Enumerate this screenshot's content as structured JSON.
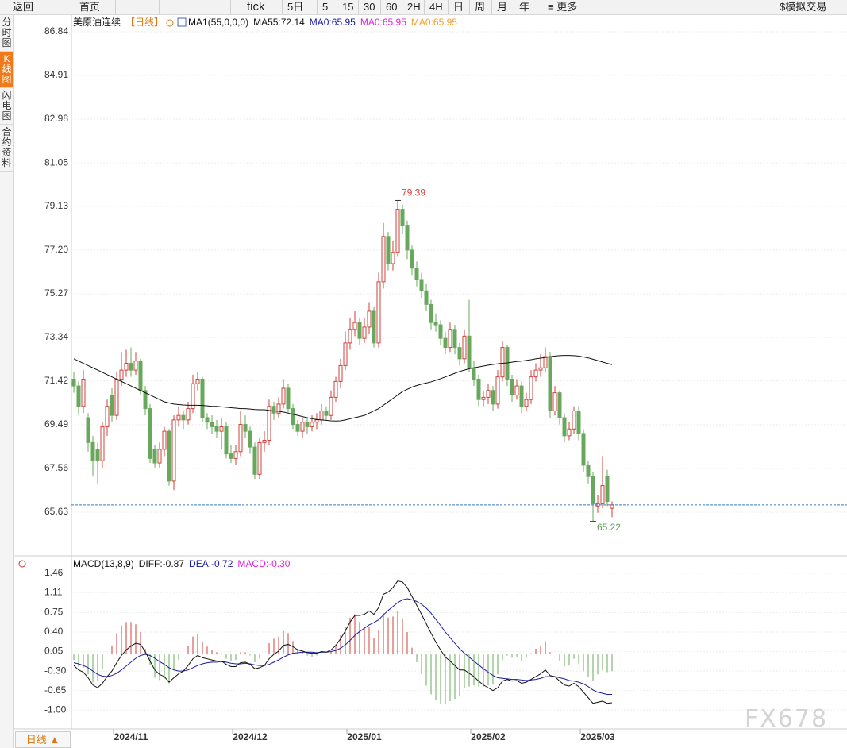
{
  "toolbar": {
    "back": "返回",
    "home": "首页",
    "tick": "tick",
    "periods": [
      "5日",
      "5",
      "15",
      "30",
      "60",
      "2H",
      "4H",
      "日",
      "周",
      "月",
      "年"
    ],
    "more": "更多",
    "trade": "模拟交易"
  },
  "sidebar": [
    "分时图",
    "K线图",
    "闪电图",
    "合约资料"
  ],
  "period_button": "日线 ▲",
  "watermark": "FX678",
  "chart_data": {
    "type": "candlestick",
    "title": "美原油连续",
    "period": "【日线】",
    "ma_params": "MA1(55,0,0,0)",
    "legend": [
      {
        "text": "MA55:72.14",
        "color": "#111111"
      },
      {
        "text": "MA0:65.95",
        "color": "#1a1aa6"
      },
      {
        "text": "MA0:65.95",
        "color": "#e020e0"
      },
      {
        "text": "MA0:65.95",
        "color": "#f0a030"
      }
    ],
    "up_color": "#d0403a",
    "down_color": "#68a85c",
    "ylim": [
      63.7,
      87.47
    ],
    "yticks": [
      86.84,
      84.91,
      82.98,
      81.05,
      79.13,
      {
        "value": 77.2,
        "label": "77.20"
      },
      75.27,
      73.34,
      71.42,
      69.49,
      67.56,
      65.63
    ],
    "grid": true,
    "xticks": [
      {
        "value": 12,
        "label": "2024/11"
      },
      {
        "value": 37,
        "label": "2024/12"
      },
      {
        "value": 61,
        "label": "2025/01"
      },
      {
        "value": 87,
        "label": "2025/02"
      },
      {
        "value": 110,
        "label": "2025/03"
      }
    ],
    "high_index": 68,
    "low_index": 109,
    "ohlc": [
      [
        71.5,
        71.8,
        70.9,
        71.2
      ],
      [
        71.2,
        71.4,
        69.9,
        70.3
      ],
      [
        70.3,
        71.9,
        70.0,
        71.5
      ],
      [
        69.8,
        70.0,
        68.3,
        68.7
      ],
      [
        68.7,
        69.0,
        67.2,
        67.9
      ],
      [
        68.4,
        68.7,
        66.9,
        67.9
      ],
      [
        67.9,
        69.6,
        67.6,
        69.4
      ],
      [
        69.4,
        70.6,
        69.0,
        70.3
      ],
      [
        70.8,
        71.1,
        69.6,
        69.9
      ],
      [
        69.9,
        71.8,
        69.7,
        71.5
      ],
      [
        71.5,
        72.7,
        71.2,
        71.9
      ],
      [
        71.9,
        72.8,
        71.6,
        72.2
      ],
      [
        72.2,
        72.9,
        71.6,
        71.9
      ],
      [
        71.9,
        72.7,
        71.7,
        72.3
      ],
      [
        72.3,
        72.4,
        70.8,
        71.0
      ],
      [
        71.0,
        71.2,
        69.9,
        70.2
      ],
      [
        70.2,
        70.4,
        67.8,
        68.0
      ],
      [
        68.4,
        68.6,
        67.6,
        67.8
      ],
      [
        67.8,
        68.7,
        67.6,
        68.4
      ],
      [
        68.4,
        69.4,
        68.1,
        69.2
      ],
      [
        69.2,
        69.3,
        66.8,
        67.0
      ],
      [
        67.0,
        69.9,
        66.6,
        69.7
      ],
      [
        69.7,
        70.3,
        69.4,
        69.9
      ],
      [
        69.9,
        70.1,
        69.3,
        69.7
      ],
      [
        69.7,
        70.5,
        69.5,
        70.2
      ],
      [
        70.2,
        71.7,
        70.0,
        71.3
      ],
      [
        71.3,
        71.8,
        71.0,
        71.5
      ],
      [
        71.5,
        71.6,
        69.6,
        69.8
      ],
      [
        69.8,
        70.0,
        69.3,
        69.6
      ],
      [
        69.6,
        69.9,
        69.1,
        69.4
      ],
      [
        69.4,
        69.7,
        68.9,
        69.2
      ],
      [
        69.2,
        69.8,
        68.4,
        69.4
      ],
      [
        69.4,
        69.6,
        68.0,
        68.2
      ],
      [
        68.2,
        68.6,
        67.8,
        68.0
      ],
      [
        68.0,
        68.6,
        67.7,
        68.3
      ],
      [
        68.3,
        70.1,
        68.1,
        69.5
      ],
      [
        69.5,
        69.9,
        68.9,
        69.2
      ],
      [
        69.2,
        69.4,
        68.2,
        68.5
      ],
      [
        68.5,
        68.7,
        67.1,
        67.3
      ],
      [
        67.3,
        68.9,
        67.1,
        68.7
      ],
      [
        68.7,
        69.2,
        68.3,
        68.8
      ],
      [
        68.8,
        70.6,
        68.6,
        70.3
      ],
      [
        70.3,
        70.5,
        69.7,
        70.0
      ],
      [
        70.0,
        70.7,
        69.8,
        70.4
      ],
      [
        70.4,
        71.5,
        70.2,
        71.1
      ],
      [
        71.1,
        71.3,
        70.0,
        70.2
      ],
      [
        70.2,
        70.4,
        69.3,
        69.5
      ],
      [
        69.5,
        69.7,
        69.0,
        69.2
      ],
      [
        69.2,
        69.8,
        68.9,
        69.6
      ],
      [
        69.6,
        69.8,
        69.1,
        69.4
      ],
      [
        69.4,
        69.9,
        69.2,
        69.6
      ],
      [
        69.6,
        70.0,
        69.3,
        69.7
      ],
      [
        69.7,
        70.4,
        69.5,
        70.1
      ],
      [
        70.1,
        70.3,
        69.7,
        69.9
      ],
      [
        69.9,
        71.0,
        69.7,
        70.7
      ],
      [
        70.7,
        71.6,
        70.5,
        71.4
      ],
      [
        71.4,
        72.4,
        71.1,
        72.1
      ],
      [
        72.1,
        73.6,
        71.9,
        73.1
      ],
      [
        73.1,
        74.2,
        72.8,
        73.7
      ],
      [
        73.7,
        74.5,
        73.4,
        74.0
      ],
      [
        74.0,
        74.2,
        73.0,
        73.3
      ],
      [
        73.3,
        74.2,
        73.1,
        73.8
      ],
      [
        73.8,
        74.9,
        73.5,
        74.5
      ],
      [
        74.5,
        74.7,
        72.9,
        73.1
      ],
      [
        73.1,
        76.2,
        72.9,
        75.8
      ],
      [
        75.8,
        78.4,
        75.5,
        77.8
      ],
      [
        77.8,
        78.0,
        76.3,
        76.6
      ],
      [
        76.6,
        77.6,
        76.3,
        77.1
      ],
      [
        77.1,
        79.39,
        76.9,
        79.0
      ],
      [
        79.0,
        79.2,
        77.9,
        78.3
      ],
      [
        78.3,
        78.5,
        76.8,
        77.2
      ],
      [
        77.2,
        77.4,
        76.1,
        76.4
      ],
      [
        76.4,
        76.7,
        75.6,
        75.9
      ],
      [
        75.9,
        76.2,
        75.1,
        75.4
      ],
      [
        75.4,
        75.7,
        74.5,
        74.8
      ],
      [
        74.8,
        75.0,
        73.7,
        74.0
      ],
      [
        74.0,
        74.4,
        73.6,
        73.9
      ],
      [
        73.9,
        74.1,
        73.0,
        73.3
      ],
      [
        73.3,
        73.6,
        72.6,
        72.9
      ],
      [
        72.9,
        74.0,
        72.7,
        73.7
      ],
      [
        73.7,
        73.9,
        72.6,
        72.9
      ],
      [
        72.9,
        73.1,
        72.1,
        72.4
      ],
      [
        72.4,
        73.7,
        72.2,
        73.4
      ],
      [
        73.4,
        75.0,
        71.8,
        72.0
      ],
      [
        72.0,
        72.3,
        71.2,
        71.5
      ],
      [
        71.5,
        71.7,
        70.3,
        70.6
      ],
      [
        70.6,
        71.0,
        70.3,
        70.7
      ],
      [
        70.7,
        71.3,
        70.4,
        71.0
      ],
      [
        71.0,
        71.2,
        70.1,
        70.4
      ],
      [
        70.4,
        71.9,
        70.2,
        71.6
      ],
      [
        71.6,
        73.2,
        71.4,
        72.9
      ],
      [
        72.9,
        73.0,
        71.2,
        71.5
      ],
      [
        71.5,
        71.7,
        70.5,
        70.8
      ],
      [
        70.8,
        71.5,
        70.6,
        71.2
      ],
      [
        71.2,
        71.4,
        70.0,
        70.3
      ],
      [
        70.3,
        70.9,
        70.1,
        70.6
      ],
      [
        70.6,
        71.9,
        70.4,
        71.6
      ],
      [
        71.6,
        72.2,
        71.4,
        71.9
      ],
      [
        71.9,
        72.6,
        71.6,
        72.0
      ],
      [
        72.0,
        72.9,
        71.8,
        72.5
      ],
      [
        72.5,
        72.7,
        69.8,
        70.1
      ],
      [
        70.1,
        71.2,
        69.9,
        70.9
      ],
      [
        70.9,
        71.0,
        69.5,
        69.8
      ],
      [
        69.8,
        70.0,
        68.7,
        69.0
      ],
      [
        69.0,
        69.6,
        68.8,
        69.3
      ],
      [
        69.3,
        70.3,
        69.1,
        70.1
      ],
      [
        70.1,
        70.3,
        68.8,
        69.1
      ],
      [
        69.1,
        69.3,
        67.4,
        67.7
      ],
      [
        67.7,
        67.9,
        66.9,
        67.2
      ],
      [
        67.2,
        67.4,
        65.22,
        66.0
      ],
      [
        65.9,
        66.4,
        65.6,
        66.0
      ],
      [
        66.0,
        68.1,
        65.8,
        66.8
      ],
      [
        67.2,
        67.5,
        65.9,
        66.1
      ],
      [
        65.8,
        66.1,
        65.4,
        65.95
      ]
    ],
    "ma": {
      "color": "#111111",
      "values": [
        72.4,
        72.3,
        72.2,
        72.1,
        72.0,
        71.9,
        71.8,
        71.7,
        71.6,
        71.5,
        71.4,
        71.3,
        71.2,
        71.1,
        71.0,
        70.9,
        70.8,
        70.7,
        70.6,
        70.5,
        70.45,
        70.4,
        70.38,
        70.36,
        70.35,
        70.35,
        70.35,
        70.34,
        70.32,
        70.3,
        70.3,
        70.28,
        70.26,
        70.24,
        70.22,
        70.2,
        70.2,
        70.18,
        70.16,
        70.15,
        70.15,
        70.12,
        70.1,
        70.08,
        70.05,
        70.0,
        69.95,
        69.9,
        69.85,
        69.8,
        69.75,
        69.72,
        69.7,
        69.68,
        69.66,
        69.65,
        69.66,
        69.7,
        69.75,
        69.8,
        69.85,
        69.9,
        70.0,
        70.1,
        70.2,
        70.35,
        70.5,
        70.65,
        70.8,
        70.95,
        71.05,
        71.15,
        71.22,
        71.28,
        71.33,
        71.38,
        71.45,
        71.52,
        71.6,
        71.68,
        71.76,
        71.84,
        71.9,
        71.96,
        72.0,
        72.04,
        72.08,
        72.12,
        72.15,
        72.18,
        72.2,
        72.22,
        72.25,
        72.28,
        72.3,
        72.33,
        72.36,
        72.4,
        72.43,
        72.46,
        72.49,
        72.52,
        72.54,
        72.55,
        72.55,
        72.54,
        72.52,
        72.48,
        72.44,
        72.38,
        72.32,
        72.26,
        72.2,
        72.14
      ]
    },
    "macd": {
      "title": "MACD(13,8,9)",
      "legend": [
        {
          "text": "DIFF:-0.87",
          "color": "#111111"
        },
        {
          "text": "DEA:-0.72",
          "color": "#1a1aa6"
        },
        {
          "text": "MACD:-0.30",
          "color": "#e020e0"
        }
      ],
      "ylim": [
        -1.34,
        1.77
      ],
      "yticks": [
        1.46,
        1.11,
        0.75,
        {
          "value": 0.4,
          "label": "0.40"
        },
        0.05,
        {
          "value": -0.3,
          "label": "-0.30"
        },
        -0.65,
        {
          "value": -1.0,
          "label": "-1.00"
        }
      ],
      "diff": {
        "color": "#111111",
        "values": [
          -0.2,
          -0.28,
          -0.32,
          -0.42,
          -0.55,
          -0.6,
          -0.52,
          -0.4,
          -0.3,
          -0.15,
          -0.02,
          0.08,
          0.15,
          0.2,
          0.18,
          0.05,
          -0.12,
          -0.28,
          -0.36,
          -0.4,
          -0.5,
          -0.42,
          -0.35,
          -0.3,
          -0.2,
          -0.08,
          -0.02,
          -0.06,
          -0.08,
          -0.1,
          -0.12,
          -0.12,
          -0.18,
          -0.22,
          -0.22,
          -0.15,
          -0.14,
          -0.18,
          -0.26,
          -0.24,
          -0.2,
          -0.08,
          0.0,
          0.06,
          0.16,
          0.18,
          0.14,
          0.08,
          0.06,
          0.03,
          0.02,
          0.02,
          0.05,
          0.04,
          0.08,
          0.16,
          0.28,
          0.42,
          0.58,
          0.7,
          0.7,
          0.72,
          0.78,
          0.72,
          0.84,
          1.08,
          1.12,
          1.2,
          1.32,
          1.3,
          1.2,
          1.04,
          0.88,
          0.72,
          0.55,
          0.38,
          0.22,
          0.08,
          -0.05,
          -0.12,
          -0.2,
          -0.28,
          -0.28,
          -0.34,
          -0.4,
          -0.48,
          -0.55,
          -0.6,
          -0.65,
          -0.6,
          -0.48,
          -0.45,
          -0.48,
          -0.47,
          -0.52,
          -0.5,
          -0.45,
          -0.4,
          -0.35,
          -0.28,
          -0.38,
          -0.4,
          -0.48,
          -0.55,
          -0.57,
          -0.52,
          -0.58,
          -0.68,
          -0.78,
          -0.88,
          -0.86,
          -0.84,
          -0.88,
          -0.87
        ]
      },
      "dea": {
        "color": "#1a1aa6",
        "values": [
          -0.15,
          -0.17,
          -0.2,
          -0.24,
          -0.3,
          -0.36,
          -0.39,
          -0.4,
          -0.38,
          -0.34,
          -0.28,
          -0.21,
          -0.14,
          -0.07,
          -0.02,
          0.0,
          -0.02,
          -0.07,
          -0.13,
          -0.18,
          -0.24,
          -0.28,
          -0.3,
          -0.3,
          -0.28,
          -0.24,
          -0.2,
          -0.17,
          -0.15,
          -0.14,
          -0.14,
          -0.13,
          -0.14,
          -0.16,
          -0.17,
          -0.17,
          -0.16,
          -0.17,
          -0.19,
          -0.2,
          -0.2,
          -0.18,
          -0.14,
          -0.1,
          -0.05,
          -0.01,
          0.02,
          0.03,
          0.04,
          0.04,
          0.04,
          0.03,
          0.04,
          0.04,
          0.05,
          0.07,
          0.11,
          0.17,
          0.25,
          0.34,
          0.41,
          0.47,
          0.53,
          0.57,
          0.62,
          0.71,
          0.79,
          0.86,
          0.93,
          0.98,
          1.0,
          0.98,
          0.95,
          0.9,
          0.83,
          0.74,
          0.63,
          0.52,
          0.4,
          0.3,
          0.2,
          0.1,
          0.02,
          -0.05,
          -0.12,
          -0.19,
          -0.26,
          -0.32,
          -0.38,
          -0.42,
          -0.43,
          -0.44,
          -0.45,
          -0.45,
          -0.46,
          -0.47,
          -0.46,
          -0.45,
          -0.43,
          -0.4,
          -0.4,
          -0.4,
          -0.42,
          -0.44,
          -0.47,
          -0.48,
          -0.5,
          -0.53,
          -0.58,
          -0.64,
          -0.68,
          -0.7,
          -0.72,
          -0.72
        ]
      },
      "hist": {
        "up_color": "#d0403a",
        "down_color": "#68a85c",
        "values": [
          -0.1,
          -0.22,
          -0.24,
          -0.36,
          -0.5,
          -0.48,
          -0.26,
          0.0,
          0.16,
          0.38,
          0.52,
          0.58,
          0.58,
          0.54,
          0.4,
          0.1,
          -0.2,
          -0.42,
          -0.46,
          -0.44,
          -0.52,
          -0.28,
          -0.1,
          0.0,
          0.16,
          0.32,
          0.36,
          0.22,
          0.14,
          0.08,
          0.04,
          0.02,
          -0.08,
          -0.12,
          -0.1,
          0.04,
          0.04,
          -0.02,
          -0.14,
          -0.08,
          0.0,
          0.2,
          0.28,
          0.32,
          0.42,
          0.38,
          0.24,
          0.1,
          0.04,
          -0.02,
          -0.04,
          -0.02,
          0.02,
          0.0,
          0.06,
          0.18,
          0.34,
          0.5,
          0.66,
          0.72,
          0.58,
          0.5,
          0.5,
          0.3,
          0.44,
          0.74,
          0.66,
          0.68,
          0.78,
          0.64,
          0.4,
          0.12,
          -0.14,
          -0.36,
          -0.56,
          -0.72,
          -0.82,
          -0.88,
          -0.9,
          -0.84,
          -0.8,
          -0.76,
          -0.6,
          -0.58,
          -0.56,
          -0.58,
          -0.58,
          -0.56,
          -0.54,
          -0.36,
          -0.1,
          -0.02,
          -0.06,
          -0.04,
          -0.12,
          -0.06,
          0.02,
          0.1,
          0.16,
          0.24,
          0.04,
          0.0,
          -0.12,
          -0.22,
          -0.2,
          -0.08,
          -0.16,
          -0.3,
          -0.4,
          -0.48,
          -0.36,
          -0.28,
          -0.32,
          -0.3
        ]
      }
    }
  }
}
